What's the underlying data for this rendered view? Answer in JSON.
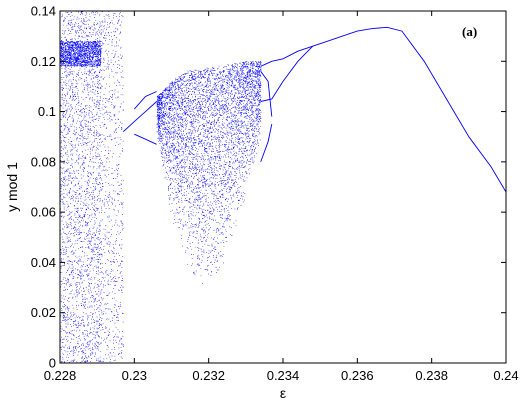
{
  "chart_data": {
    "type": "scatter",
    "panel_label": "(a)",
    "xlabel": "ε",
    "ylabel": "y mod 1",
    "xlim": [
      0.228,
      0.24
    ],
    "ylim": [
      0,
      0.14
    ],
    "x_ticks": [
      0.228,
      0.23,
      0.232,
      0.234,
      0.236,
      0.238,
      0.24
    ],
    "x_tick_labels": [
      "0.228",
      "0.23",
      "0.232",
      "0.234",
      "0.236",
      "0.238",
      "0.24"
    ],
    "y_ticks": [
      0,
      0.02,
      0.04,
      0.06,
      0.08,
      0.1,
      0.12,
      0.14
    ],
    "y_tick_labels": [
      "0",
      "0.02",
      "0.04",
      "0.06",
      "0.08",
      "0.1",
      "0.12",
      "0.14"
    ],
    "grid": false,
    "series": [
      {
        "color": "#0000ff",
        "regions": [
          {
            "kind": "noise_band",
            "x": [
              0.228,
              0.2291
            ],
            "y": [
              0.0,
              0.14
            ],
            "density": 0.85
          },
          {
            "kind": "noise_band",
            "x": [
              0.2291,
              0.2297
            ],
            "y": [
              0.0,
              0.14
            ],
            "density": 0.25
          },
          {
            "kind": "dense_band",
            "x": [
              0.228,
              0.2291
            ],
            "y": [
              0.118,
              0.128
            ]
          },
          {
            "kind": "chaotic_envelope",
            "x": [
              0.2306,
              0.231,
              0.2314,
              0.2318,
              0.2322,
              0.2326,
              0.233,
              0.2334
            ],
            "upper": [
              0.106,
              0.112,
              0.116,
              0.117,
              0.118,
              0.119,
              0.12,
              0.12
            ],
            "lower": [
              0.09,
              0.055,
              0.04,
              0.027,
              0.03,
              0.047,
              0.067,
              0.088
            ],
            "density": 1.0
          }
        ],
        "curves": [
          {
            "x": [
              0.2297,
              0.23,
              0.2303,
              0.2306
            ],
            "y": [
              0.092,
              0.096,
              0.1,
              0.104
            ]
          },
          {
            "x": [
              0.23,
              0.2303,
              0.2306
            ],
            "y": [
              0.101,
              0.106,
              0.108
            ]
          },
          {
            "x": [
              0.23,
              0.2303,
              0.2306
            ],
            "y": [
              0.091,
              0.089,
              0.087
            ]
          },
          {
            "x": [
              0.2334,
              0.2337,
              0.234,
              0.2344,
              0.2348,
              0.2352,
              0.2356,
              0.236,
              0.2364,
              0.2368,
              0.2372,
              0.2378,
              0.2384,
              0.239,
              0.2396,
              0.24
            ],
            "y": [
              0.118,
              0.12,
              0.121,
              0.124,
              0.126,
              0.128,
              0.13,
              0.132,
              0.133,
              0.1335,
              0.132,
              0.12,
              0.105,
              0.09,
              0.078,
              0.068
            ]
          },
          {
            "x": [
              0.2334,
              0.2337,
              0.234,
              0.2344,
              0.2348
            ],
            "y": [
              0.104,
              0.105,
              0.112,
              0.12,
              0.126
            ]
          },
          {
            "x": [
              0.2334,
              0.2336,
              0.2337
            ],
            "y": [
              0.116,
              0.112,
              0.098
            ]
          },
          {
            "x": [
              0.2334,
              0.2336,
              0.2337
            ],
            "y": [
              0.08,
              0.088,
              0.095
            ]
          }
        ]
      }
    ]
  }
}
